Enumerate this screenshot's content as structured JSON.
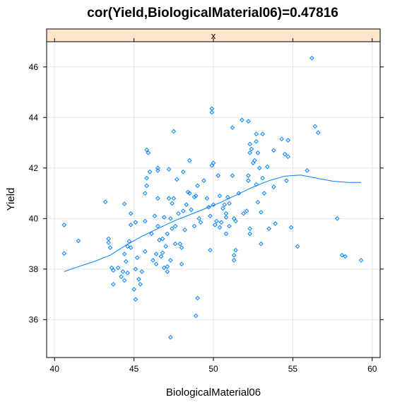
{
  "chart_data": {
    "type": "scatter",
    "title": "cor(Yield,BiologicalMaterial06)=0.47816",
    "strip_label": "x",
    "xlabel": "BiologicalMaterial06",
    "ylabel": "Yield",
    "xlim": [
      39.5,
      60.5
    ],
    "ylim": [
      34.5,
      47.0
    ],
    "x_ticks": [
      40,
      45,
      50,
      55,
      60
    ],
    "y_ticks": [
      36,
      38,
      40,
      42,
      44,
      46
    ],
    "grid": true,
    "colors": {
      "points": "#0080ff",
      "smooth": "#0080ff",
      "grid": "#e6e6e6",
      "strip_fill": "#ffe5cc",
      "frame": "#000000"
    },
    "points": [
      [
        40.6,
        39.75
      ],
      [
        40.6,
        38.62
      ],
      [
        41.5,
        39.12
      ],
      [
        43.2,
        40.66
      ],
      [
        43.4,
        39.2
      ],
      [
        43.4,
        39.05
      ],
      [
        43.5,
        38.85
      ],
      [
        43.6,
        38.05
      ],
      [
        43.7,
        37.4
      ],
      [
        43.7,
        37.95
      ],
      [
        44.0,
        38.05
      ],
      [
        44.2,
        37.7
      ],
      [
        44.3,
        37.9
      ],
      [
        44.4,
        38.6
      ],
      [
        44.4,
        37.55
      ],
      [
        44.4,
        40.58
      ],
      [
        44.5,
        38.3
      ],
      [
        44.6,
        37.85
      ],
      [
        44.6,
        38.9
      ],
      [
        44.7,
        39.1
      ],
      [
        44.8,
        38.85
      ],
      [
        44.8,
        39.75
      ],
      [
        44.8,
        40.2
      ],
      [
        45.0,
        37.2
      ],
      [
        45.1,
        36.8
      ],
      [
        45.1,
        38.0
      ],
      [
        45.1,
        39.85
      ],
      [
        45.2,
        38.45
      ],
      [
        45.3,
        37.6
      ],
      [
        45.4,
        37.4
      ],
      [
        45.5,
        37.9
      ],
      [
        45.7,
        38.7
      ],
      [
        45.7,
        39.9
      ],
      [
        45.7,
        41.0
      ],
      [
        45.8,
        41.3
      ],
      [
        45.8,
        41.6
      ],
      [
        45.8,
        42.72
      ],
      [
        45.9,
        42.6
      ],
      [
        46.0,
        41.85
      ],
      [
        46.1,
        39.4
      ],
      [
        46.2,
        38.35
      ],
      [
        46.3,
        40.1
      ],
      [
        46.4,
        38.6
      ],
      [
        46.4,
        38.2
      ],
      [
        46.5,
        39.7
      ],
      [
        46.5,
        40.8
      ],
      [
        46.5,
        41.9
      ],
      [
        46.5,
        42.0
      ],
      [
        46.6,
        39.15
      ],
      [
        46.7,
        38.5
      ],
      [
        46.8,
        38.65
      ],
      [
        46.8,
        39.2
      ],
      [
        46.9,
        38.05
      ],
      [
        46.9,
        40.05
      ],
      [
        47.0,
        38.9
      ],
      [
        47.1,
        37.9
      ],
      [
        47.1,
        38.1
      ],
      [
        47.1,
        39.4
      ],
      [
        47.2,
        40.8
      ],
      [
        47.2,
        41.95
      ],
      [
        47.3,
        40.0
      ],
      [
        47.3,
        38.35
      ],
      [
        47.3,
        35.3
      ],
      [
        47.4,
        39.6
      ],
      [
        47.4,
        40.6
      ],
      [
        47.5,
        43.45
      ],
      [
        47.5,
        40.8
      ],
      [
        47.6,
        39.0
      ],
      [
        47.6,
        39.7
      ],
      [
        47.7,
        41.55
      ],
      [
        47.8,
        40.2
      ],
      [
        47.9,
        39.0
      ],
      [
        48.0,
        38.85
      ],
      [
        48.0,
        38.2
      ],
      [
        48.1,
        41.85
      ],
      [
        48.1,
        40.3
      ],
      [
        48.2,
        39.55
      ],
      [
        48.3,
        40.55
      ],
      [
        48.4,
        41.05
      ],
      [
        48.5,
        41.0
      ],
      [
        48.5,
        42.3
      ],
      [
        48.6,
        40.35
      ],
      [
        48.8,
        39.7
      ],
      [
        48.8,
        40.85
      ],
      [
        48.9,
        40.9
      ],
      [
        48.9,
        36.15
      ],
      [
        49.0,
        36.85
      ],
      [
        49.0,
        41.3
      ],
      [
        49.1,
        40.0
      ],
      [
        49.2,
        39.85
      ],
      [
        49.4,
        41.5
      ],
      [
        49.6,
        40.8
      ],
      [
        49.7,
        40.45
      ],
      [
        49.8,
        38.75
      ],
      [
        49.8,
        40.1
      ],
      [
        49.9,
        42.1
      ],
      [
        49.9,
        44.35
      ],
      [
        49.9,
        44.2
      ],
      [
        50.0,
        42.2
      ],
      [
        50.0,
        40.55
      ],
      [
        50.1,
        39.75
      ],
      [
        50.2,
        39.9
      ],
      [
        50.3,
        41.7
      ],
      [
        50.4,
        40.9
      ],
      [
        50.4,
        39.65
      ],
      [
        50.5,
        39.85
      ],
      [
        50.6,
        40.4
      ],
      [
        50.7,
        40.55
      ],
      [
        50.8,
        40.05
      ],
      [
        50.8,
        40.2
      ],
      [
        50.8,
        39.4
      ],
      [
        50.9,
        40.85
      ],
      [
        51.0,
        39.7
      ],
      [
        51.0,
        40.6
      ],
      [
        51.2,
        43.6
      ],
      [
        51.2,
        41.7
      ],
      [
        51.3,
        40.0
      ],
      [
        51.3,
        38.55
      ],
      [
        51.3,
        38.35
      ],
      [
        51.4,
        39.9
      ],
      [
        51.4,
        38.75
      ],
      [
        51.6,
        41.0
      ],
      [
        51.8,
        43.9
      ],
      [
        51.9,
        40.2
      ],
      [
        52.1,
        40.3
      ],
      [
        52.2,
        43.85
      ],
      [
        52.2,
        41.7
      ],
      [
        52.2,
        41.5
      ],
      [
        52.3,
        42.95
      ],
      [
        52.3,
        42.6
      ],
      [
        52.3,
        39.6
      ],
      [
        52.3,
        39.4
      ],
      [
        52.4,
        42.75
      ],
      [
        52.5,
        42.2
      ],
      [
        52.6,
        42.3
      ],
      [
        52.7,
        43.05
      ],
      [
        52.7,
        43.35
      ],
      [
        52.7,
        41.35
      ],
      [
        52.8,
        40.65
      ],
      [
        52.8,
        42.6
      ],
      [
        52.9,
        42.0
      ],
      [
        53.0,
        40.25
      ],
      [
        53.0,
        39.0
      ],
      [
        53.1,
        43.35
      ],
      [
        53.1,
        41.6
      ],
      [
        53.2,
        41.0
      ],
      [
        53.4,
        42.05
      ],
      [
        53.5,
        39.6
      ],
      [
        53.8,
        42.7
      ],
      [
        53.8,
        41.25
      ],
      [
        53.9,
        39.8
      ],
      [
        54.3,
        43.15
      ],
      [
        54.5,
        42.55
      ],
      [
        54.6,
        41.5
      ],
      [
        54.7,
        42.45
      ],
      [
        54.7,
        43.1
      ],
      [
        54.9,
        39.65
      ],
      [
        55.3,
        38.9
      ],
      [
        55.9,
        41.9
      ],
      [
        56.2,
        46.35
      ],
      [
        56.4,
        43.65
      ],
      [
        56.6,
        43.4
      ],
      [
        57.8,
        40.0
      ],
      [
        58.1,
        38.55
      ],
      [
        58.3,
        38.5
      ],
      [
        59.3,
        38.35
      ]
    ],
    "smooth_line": [
      [
        40.6,
        37.9
      ],
      [
        41.5,
        38.1
      ],
      [
        42.5,
        38.3
      ],
      [
        43.5,
        38.55
      ],
      [
        44.5,
        38.95
      ],
      [
        45.5,
        39.3
      ],
      [
        46.5,
        39.6
      ],
      [
        47.5,
        39.9
      ],
      [
        48.5,
        40.15
      ],
      [
        49.5,
        40.4
      ],
      [
        50.5,
        40.65
      ],
      [
        51.5,
        40.95
      ],
      [
        52.5,
        41.25
      ],
      [
        53.5,
        41.5
      ],
      [
        54.5,
        41.68
      ],
      [
        55.5,
        41.72
      ],
      [
        56.5,
        41.6
      ],
      [
        57.5,
        41.48
      ],
      [
        58.5,
        41.43
      ],
      [
        59.3,
        41.43
      ]
    ]
  }
}
